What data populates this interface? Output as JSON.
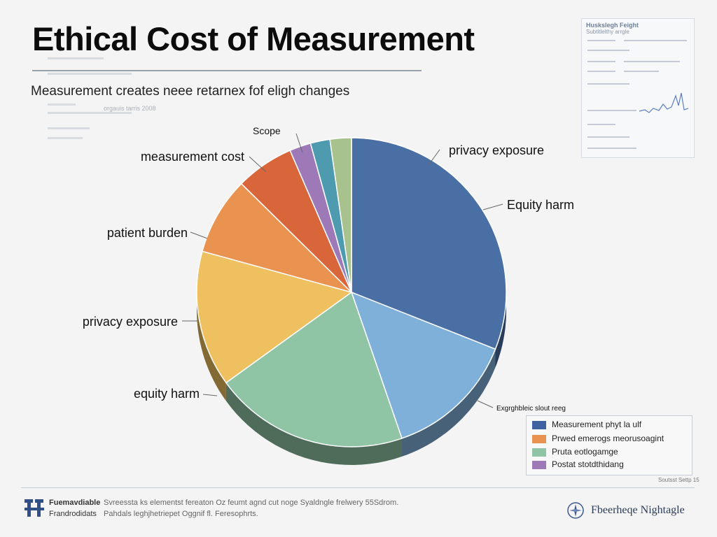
{
  "header": {
    "title": "Ethical Cost of Measurement",
    "subtitle": "Measurement creates neee retarnex fof eligh changes"
  },
  "background_doc": {
    "line1": "orgauis tarris 2008"
  },
  "mini_panel": {
    "title": "Huskslegh Feight",
    "subtitle": "Subtitlelthy arrgle"
  },
  "chart_data": {
    "type": "pie",
    "title": "",
    "slices": [
      {
        "label": "privacy exposure",
        "value": 30.5,
        "color": "#4a6fa5"
      },
      {
        "label": "Exgrghbleic slout reeg",
        "value": 13.5,
        "color": "#7fb0da"
      },
      {
        "label": "equity harm",
        "value": 20.0,
        "color": "#8fc4a4"
      },
      {
        "label": "privacy exposure",
        "value": 14.0,
        "color": "#eec060"
      },
      {
        "label": "patient burden",
        "value": 8.0,
        "color": "#ea9350"
      },
      {
        "label": "measurement cost",
        "value": 6.0,
        "color": "#d9663a"
      },
      {
        "label": "Scope",
        "value": 2.2,
        "color": "#9d79b8"
      },
      {
        "label": "",
        "value": 2.0,
        "color": "#4e9bb0"
      },
      {
        "label": "",
        "value": 2.2,
        "color": "#a7c28d"
      }
    ],
    "callouts": [
      "privacy exposure",
      "Equity harm",
      "Exgrghbleic slout reeg",
      "equity harm",
      "privacy exposure",
      "patient burden",
      "measurement cost",
      "Scope"
    ],
    "legend": [
      {
        "label": "Measurement phyt la ulf",
        "color": "#3f63a0"
      },
      {
        "label": "Prwed emerogs meorusoagint",
        "color": "#ea9350"
      },
      {
        "label": "Pruta eotlogamge",
        "color": "#8fc4a4"
      },
      {
        "label": "Postat stotdthidang",
        "color": "#9d79b8"
      }
    ],
    "legend_position": "bottom-right",
    "grid": false
  },
  "footer": {
    "org_name": "Fuemavdiable",
    "org_line2": "Frandrodidats",
    "desc1": "Svreessta ks elementst fereaton Oz feumt agnd cut noge Syaldngle frelwery 55Sdrom.",
    "desc2": "Pahdals leghjhetriepet Oggnif fl. Feresophrts.",
    "brand": "Fbeerheqe Nightagle",
    "legend_tag": "Soutsst Settp 15"
  },
  "icons": {
    "footer_logo": "org-logo-icon",
    "brand": "compass-emblem-icon"
  }
}
